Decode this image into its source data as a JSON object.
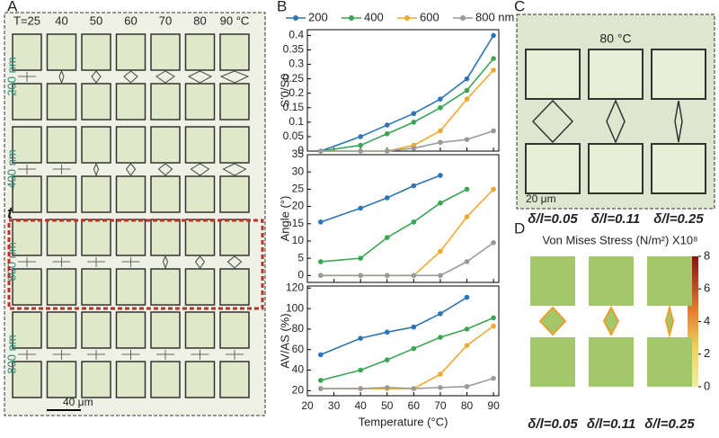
{
  "chart_data": [
    {
      "type": "line",
      "ylabel": "S′0/S0",
      "x": [
        25,
        40,
        50,
        60,
        70,
        80,
        90
      ],
      "xlim": [
        20,
        92
      ],
      "xticks": [
        20,
        30,
        40,
        50,
        60,
        70,
        80,
        90
      ],
      "ylim": [
        0,
        0.42
      ],
      "yticks": [
        0,
        0.05,
        0.1,
        0.15,
        0.2,
        0.25,
        0.3,
        0.35,
        0.4
      ],
      "series": [
        {
          "name": "200",
          "color": "#2e75b6",
          "values": [
            0,
            0.05,
            0.09,
            0.13,
            0.18,
            0.25,
            0.4
          ]
        },
        {
          "name": "400",
          "color": "#3aa655",
          "values": [
            0,
            0.02,
            0.06,
            0.1,
            0.15,
            0.21,
            0.32
          ]
        },
        {
          "name": "600",
          "color": "#f0a830",
          "values": [
            0,
            0,
            0,
            0.02,
            0.07,
            0.18,
            0.28
          ]
        },
        {
          "name": "800 nm",
          "color": "#999999",
          "values": [
            0,
            0,
            0,
            0.01,
            0.03,
            0.04,
            0.07
          ]
        }
      ]
    },
    {
      "type": "line",
      "ylabel": "Angle (°)",
      "x": [
        25,
        40,
        50,
        60,
        70,
        80,
        90
      ],
      "xlim": [
        20,
        92
      ],
      "xticks": [
        20,
        30,
        40,
        50,
        60,
        70,
        80,
        90
      ],
      "ylim": [
        -2,
        35
      ],
      "yticks": [
        0,
        5,
        10,
        15,
        20,
        25,
        30,
        35
      ],
      "series": [
        {
          "color": "#2e75b6",
          "values": [
            15.5,
            19.5,
            22.5,
            26,
            29,
            null,
            null
          ]
        },
        {
          "color": "#3aa655",
          "values": [
            4,
            5,
            11,
            15.5,
            21,
            25,
            null
          ]
        },
        {
          "color": "#f0a830",
          "values": [
            0,
            0,
            0,
            0,
            7,
            17,
            25
          ]
        },
        {
          "color": "#999999",
          "values": [
            0,
            0,
            0,
            0,
            0,
            4,
            9.5
          ]
        }
      ]
    },
    {
      "type": "line",
      "ylabel": "AV/AS (%)",
      "xlabel": "Temperature (°C)",
      "x": [
        25,
        40,
        50,
        60,
        70,
        80,
        90
      ],
      "xlim": [
        20,
        92
      ],
      "xticks": [
        20,
        30,
        40,
        50,
        60,
        70,
        80,
        90
      ],
      "ylim": [
        15,
        122
      ],
      "yticks": [
        20,
        40,
        60,
        80,
        100,
        120
      ],
      "series": [
        {
          "color": "#2e75b6",
          "values": [
            55,
            71,
            77,
            82,
            95,
            111,
            null
          ]
        },
        {
          "color": "#3aa655",
          "values": [
            30,
            40,
            50,
            61,
            72,
            80,
            91
          ]
        },
        {
          "color": "#f0a830",
          "values": [
            22,
            22,
            22,
            22,
            36,
            64,
            83
          ]
        },
        {
          "color": "#999999",
          "values": [
            22,
            22,
            23,
            22,
            23,
            24,
            32
          ]
        }
      ]
    }
  ],
  "figure": {
    "panel_labels": [
      "A",
      "B",
      "C",
      "D"
    ],
    "panel_a": {
      "temperatures": [
        "T=25",
        "40",
        "50",
        "60",
        "70",
        "80",
        "90 °C"
      ],
      "rows": [
        "200 nm",
        "400 nm",
        "600 nm",
        "800 nm"
      ],
      "axis": "t",
      "scale": "40 μm"
    },
    "panel_c": {
      "temperature": "80 °C",
      "scale": "20 μm",
      "ratios": [
        "δ/l=0.05",
        "δ/l=0.11",
        "δ/l=0.25"
      ]
    },
    "panel_d": {
      "title": "Von Mises Stress (N/m²) X10⁸",
      "colorbar_lim": [
        0,
        8
      ],
      "colorbar_ticks": [
        0,
        2,
        4,
        6,
        8
      ],
      "ratios": [
        "δ/l=0.05",
        "δ/l=0.11",
        "δ/l=0.25"
      ]
    }
  }
}
